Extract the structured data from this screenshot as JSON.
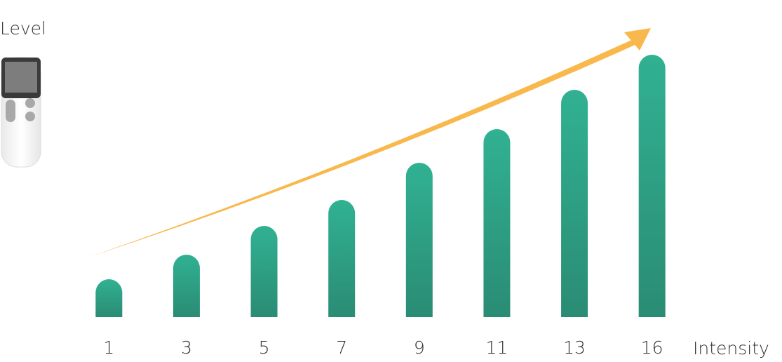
{
  "chart_data": {
    "type": "bar",
    "y_label": "Level",
    "x_label": "Intensity",
    "categories": [
      "1",
      "3",
      "5",
      "7",
      "9",
      "11",
      "13",
      "16"
    ],
    "values": [
      54,
      89,
      130,
      167,
      220,
      268,
      324,
      374
    ],
    "color": "#31b192",
    "ylim": [
      0,
      400
    ]
  }
}
